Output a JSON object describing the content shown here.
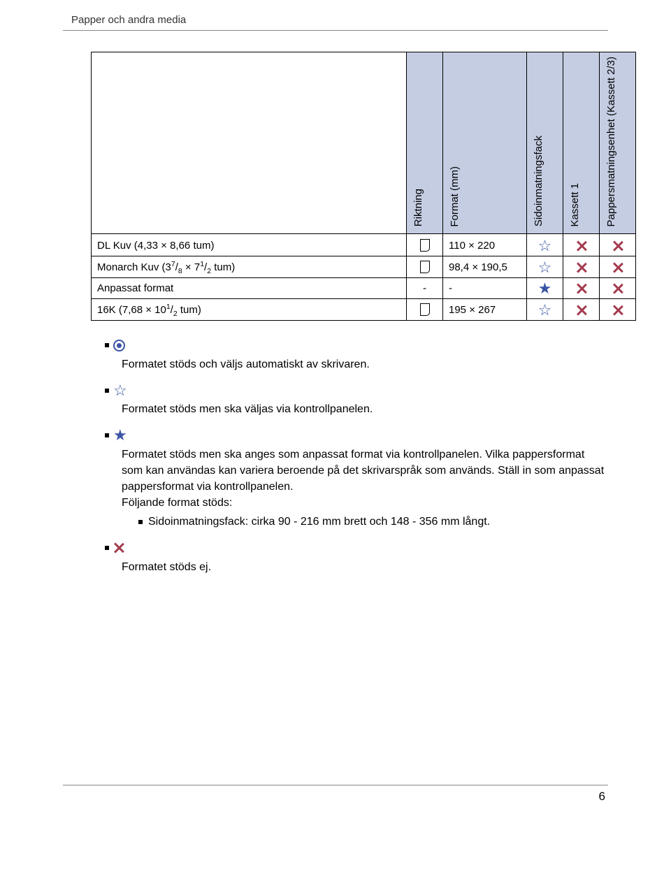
{
  "running_head": "Papper och andra media",
  "table": {
    "headers": {
      "c1": "",
      "c2": "Riktning",
      "c3": "Format (mm)",
      "c4": "Sidoinmatningsfack",
      "c5": "Kassett 1",
      "c6": "Pappersmatningsenhet (Kassett 2/3)"
    },
    "rows": [
      {
        "name_html": "DL Kuv (4,33 × 8,66 tum)",
        "dir": "portrait",
        "format": "110 × 220",
        "s": "star-outline",
        "k1": "cross",
        "k23": "cross"
      },
      {
        "name_html": "Monarch Kuv (3<sup>7</sup>/<sub>8</sub> × 7<sup>1</sup>/<sub>2</sub> tum)",
        "dir": "portrait",
        "format": "98,4 × 190,5",
        "s": "star-outline",
        "k1": "cross",
        "k23": "cross"
      },
      {
        "name_html": "Anpassat format",
        "dir": "-",
        "format": "-",
        "s": "star-filled",
        "k1": "cross",
        "k23": "cross"
      },
      {
        "name_html": "16K (7,68 × 10<sup>1</sup>/<sub>2</sub> tum)",
        "dir": "portrait",
        "format": "195 × 267",
        "s": "star-outline",
        "k1": "cross",
        "k23": "cross"
      }
    ]
  },
  "notes": {
    "n1": {
      "icon": "target",
      "text": "Formatet stöds och väljs automatiskt av skrivaren."
    },
    "n2": {
      "icon": "star-outline",
      "text": "Formatet stöds men ska väljas via kontrollpanelen."
    },
    "n3": {
      "icon": "star-filled",
      "text_a": "Formatet stöds men ska anges som anpassat format via kontrollpanelen. Vilka pappersformat som kan användas kan variera beroende på det skrivarspråk som används. Ställ in som anpassat pappersformat via kontrollpanelen.",
      "text_b": "Följande format stöds:",
      "sub": "Sidoinmatningsfack: cirka 90 - 216 mm brett och 148 - 356 mm långt."
    },
    "n4": {
      "icon": "cross",
      "text": "Formatet stöds ej."
    }
  },
  "page_number": "6",
  "colors": {
    "header_bg": "#c4cde2",
    "star": "#3b55a5",
    "cross": "#a43b4f"
  }
}
